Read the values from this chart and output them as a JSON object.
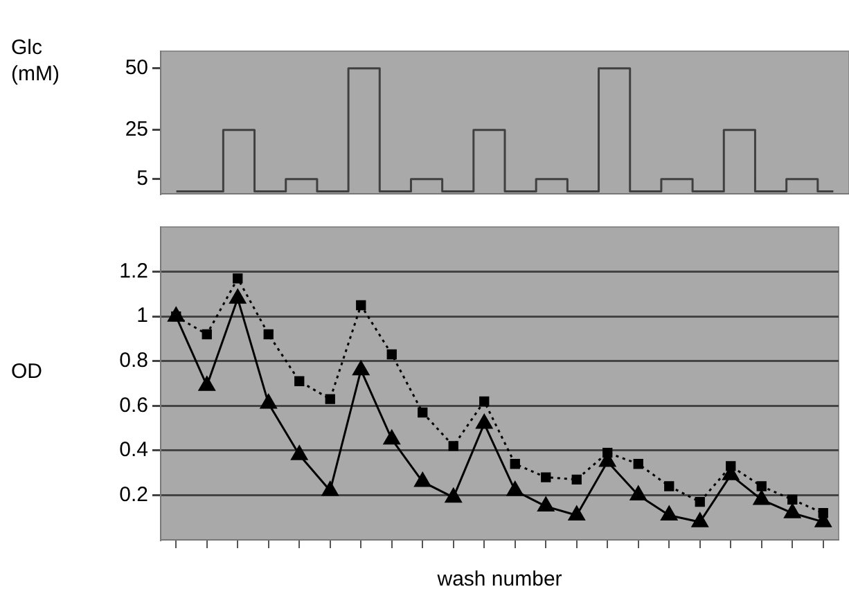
{
  "chart_data": [
    {
      "type": "step",
      "ylabel": "Glc\n(mM)",
      "categories": [
        null,
        null,
        null,
        null,
        null,
        null,
        null,
        null,
        null,
        null,
        null,
        null,
        null,
        null,
        null,
        null,
        null,
        null,
        null,
        null,
        null,
        null
      ],
      "series": [
        {
          "color": "#404040",
          "values": [
            0,
            0,
            25,
            0,
            5,
            0,
            50,
            0,
            5,
            0,
            25,
            0,
            5,
            0,
            50,
            0,
            5,
            0,
            25,
            0,
            5,
            0
          ]
        }
      ],
      "ylim": [
        -1,
        57
      ],
      "yticks": [
        5,
        25,
        50
      ],
      "grid": false,
      "legend": false,
      "tick_labels": "y",
      "marker": "none",
      "line_style": "solid"
    },
    {
      "type": "line",
      "xlabel": "wash number",
      "ylabel": "OD",
      "categories": [
        null,
        null,
        null,
        null,
        null,
        null,
        null,
        null,
        null,
        null,
        null,
        null,
        null,
        null,
        null,
        null,
        null,
        null,
        null,
        null,
        null,
        null
      ],
      "series": [
        {
          "color": "#000000",
          "marker": "square",
          "line_style": "dotted",
          "values": [
            1.0,
            0.92,
            1.17,
            0.92,
            0.71,
            0.63,
            1.05,
            0.83,
            0.57,
            0.42,
            0.62,
            0.34,
            0.28,
            0.27,
            0.39,
            0.34,
            0.24,
            0.17,
            0.33,
            0.24,
            0.18,
            0.12
          ]
        },
        {
          "color": "#000000",
          "marker": "triangle",
          "line_style": "solid",
          "values": [
            1.0,
            0.69,
            1.08,
            0.61,
            0.38,
            0.22,
            0.76,
            0.45,
            0.26,
            0.19,
            0.52,
            0.22,
            0.15,
            0.11,
            0.35,
            0.2,
            0.11,
            0.08,
            0.29,
            0.18,
            0.12,
            0.08
          ]
        }
      ],
      "ylim": [
        0,
        1.4
      ],
      "yticks": [
        0.2,
        0.4,
        0.6,
        0.8,
        1.0,
        1.2
      ],
      "grid": "y",
      "legend": false,
      "tick_labels": "y"
    }
  ]
}
